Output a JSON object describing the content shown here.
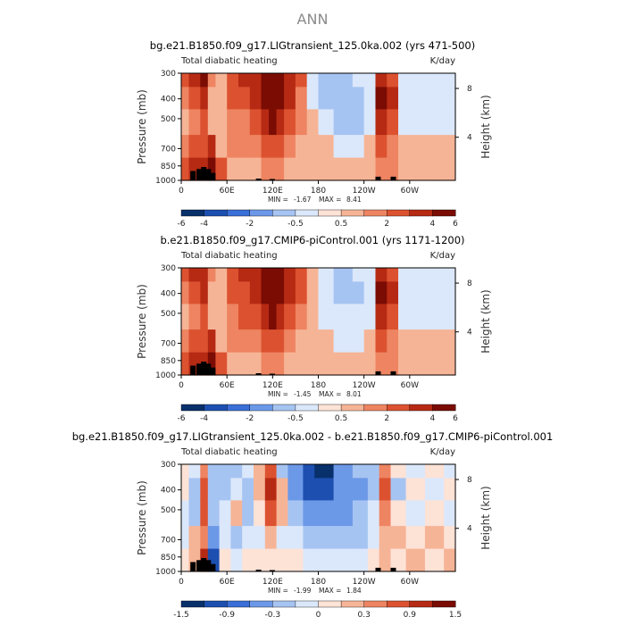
{
  "figure_title": "ANN",
  "colors": {
    "palette_12": [
      "#08306b",
      "#1c4fb0",
      "#3a6fd8",
      "#6c98e8",
      "#a6c4f2",
      "#dbe8fb",
      "#fde2d6",
      "#f6b496",
      "#ee8461",
      "#dc5230",
      "#b62a14",
      "#7a0c04"
    ],
    "terrain": "#000000"
  },
  "chart_data": [
    {
      "type": "heatmap",
      "title": "bg.e21.B1850.f09_g17.LIGtransient_125.0ka.002 (yrs 471-500)",
      "variable": "Total diabatic heating",
      "units": "K/day",
      "ylabel": "Pressure (mb)",
      "y2label": "Height (km)",
      "x_ticks": [
        "0",
        "60E",
        "120E",
        "180",
        "120W",
        "60W"
      ],
      "x_tick_values": [
        0,
        60,
        120,
        180,
        240,
        300
      ],
      "xlim": [
        0,
        360
      ],
      "y_ticks": [
        "300",
        "400",
        "500",
        "700",
        "850",
        "1000"
      ],
      "y_tick_values": [
        300,
        400,
        500,
        700,
        850,
        1000
      ],
      "ylim": [
        1000,
        300
      ],
      "y2_ticks": [
        "8",
        "4"
      ],
      "y2_tick_values": [
        8,
        4
      ],
      "min_label": "MIN =",
      "min_value": "-1.67",
      "max_label": "MAX =",
      "max_value": "8.41",
      "colorbar_levels": [
        -6,
        -4,
        -3,
        -2,
        -1,
        -0.5,
        0,
        0.5,
        1,
        2,
        3,
        4,
        6
      ],
      "colorbar_labels": [
        "-6",
        "-4",
        "-2",
        "-0.5",
        "0.5",
        "2",
        "4",
        "6"
      ],
      "field": [
        {
          "lon": 0,
          "values": [
            2,
            1,
            0.5,
            1,
            2
          ]
        },
        {
          "lon": 10,
          "values": [
            3,
            2,
            1,
            2,
            3
          ]
        },
        {
          "lon": 25,
          "values": [
            4,
            3,
            2,
            2,
            3
          ]
        },
        {
          "lon": 35,
          "values": [
            1,
            0.5,
            0.5,
            3,
            6
          ]
        },
        {
          "lon": 45,
          "values": [
            0.5,
            0.5,
            0.5,
            0.5,
            2
          ]
        },
        {
          "lon": 60,
          "values": [
            2,
            2,
            1,
            1,
            0.5
          ]
        },
        {
          "lon": 75,
          "values": [
            3,
            2,
            1,
            1,
            0.5
          ]
        },
        {
          "lon": 90,
          "values": [
            3,
            3,
            2,
            1,
            0.5
          ]
        },
        {
          "lon": 105,
          "values": [
            4,
            4,
            3,
            2,
            1
          ]
        },
        {
          "lon": 115,
          "values": [
            6,
            6,
            4,
            2,
            1
          ]
        },
        {
          "lon": 125,
          "values": [
            4,
            6,
            3,
            2,
            1
          ]
        },
        {
          "lon": 135,
          "values": [
            3,
            3,
            2,
            1,
            0.5
          ]
        },
        {
          "lon": 150,
          "values": [
            2,
            1,
            1,
            0.5,
            0.5
          ]
        },
        {
          "lon": 165,
          "values": [
            -0.5,
            -0.5,
            0.5,
            0.5,
            0.5
          ]
        },
        {
          "lon": 180,
          "values": [
            -1,
            -1,
            -0.5,
            0.5,
            0.5
          ]
        },
        {
          "lon": 200,
          "values": [
            -1,
            -1,
            -1,
            -0.5,
            0.5
          ]
        },
        {
          "lon": 225,
          "values": [
            -0.5,
            -1,
            -1,
            -0.5,
            0.5
          ]
        },
        {
          "lon": 240,
          "values": [
            -0.5,
            -0.5,
            -0.5,
            0.5,
            0.5
          ]
        },
        {
          "lon": 255,
          "values": [
            3,
            4,
            3,
            2,
            1
          ]
        },
        {
          "lon": 270,
          "values": [
            2,
            3,
            2,
            1,
            1
          ]
        },
        {
          "lon": 285,
          "values": [
            -0.5,
            -0.5,
            -0.5,
            0.5,
            0.5
          ]
        },
        {
          "lon": 300,
          "values": [
            -0.5,
            -0.5,
            -0.5,
            0.5,
            0.5
          ]
        },
        {
          "lon": 330,
          "values": [
            -0.5,
            -0.5,
            -0.5,
            0.5,
            0.5
          ]
        },
        {
          "lon": 360,
          "values": [
            0.5,
            0.5,
            0.5,
            1,
            2
          ]
        }
      ],
      "field_levels": [
        300,
        400,
        500,
        700,
        850
      ]
    },
    {
      "type": "heatmap",
      "title": "b.e21.B1850.f09_g17.CMIP6-piControl.001 (yrs 1171-1200)",
      "variable": "Total diabatic heating",
      "units": "K/day",
      "ylabel": "Pressure (mb)",
      "y2label": "Height (km)",
      "x_ticks": [
        "0",
        "60E",
        "120E",
        "180",
        "120W",
        "60W"
      ],
      "x_tick_values": [
        0,
        60,
        120,
        180,
        240,
        300
      ],
      "xlim": [
        0,
        360
      ],
      "y_ticks": [
        "300",
        "400",
        "500",
        "700",
        "850",
        "1000"
      ],
      "y_tick_values": [
        300,
        400,
        500,
        700,
        850,
        1000
      ],
      "ylim": [
        1000,
        300
      ],
      "y2_ticks": [
        "8",
        "4"
      ],
      "y2_tick_values": [
        8,
        4
      ],
      "min_label": "MIN =",
      "min_value": "-1.45",
      "max_label": "MAX =",
      "max_value": "8.01",
      "colorbar_levels": [
        -6,
        -4,
        -3,
        -2,
        -1,
        -0.5,
        0,
        0.5,
        1,
        2,
        3,
        4,
        6
      ],
      "colorbar_labels": [
        "-6",
        "-4",
        "-2",
        "-0.5",
        "0.5",
        "2",
        "4",
        "6"
      ],
      "field": [
        {
          "lon": 0,
          "values": [
            2,
            1,
            0.5,
            1,
            2
          ]
        },
        {
          "lon": 10,
          "values": [
            3,
            2,
            1,
            2,
            3
          ]
        },
        {
          "lon": 25,
          "values": [
            3,
            3,
            2,
            2,
            3
          ]
        },
        {
          "lon": 35,
          "values": [
            1,
            0.5,
            0.5,
            3,
            6
          ]
        },
        {
          "lon": 45,
          "values": [
            0.5,
            0.5,
            0.5,
            0.5,
            2
          ]
        },
        {
          "lon": 60,
          "values": [
            2,
            2,
            1,
            1,
            0.5
          ]
        },
        {
          "lon": 75,
          "values": [
            3,
            2,
            2,
            1,
            0.5
          ]
        },
        {
          "lon": 90,
          "values": [
            3,
            3,
            2,
            1,
            0.5
          ]
        },
        {
          "lon": 105,
          "values": [
            4,
            4,
            3,
            2,
            1
          ]
        },
        {
          "lon": 115,
          "values": [
            6,
            6,
            4,
            2,
            1
          ]
        },
        {
          "lon": 125,
          "values": [
            4,
            4,
            3,
            2,
            1
          ]
        },
        {
          "lon": 135,
          "values": [
            3,
            3,
            2,
            1,
            0.5
          ]
        },
        {
          "lon": 150,
          "values": [
            2,
            2,
            1,
            0.5,
            0.5
          ]
        },
        {
          "lon": 165,
          "values": [
            0.5,
            0.5,
            0.5,
            0.5,
            0.5
          ]
        },
        {
          "lon": 180,
          "values": [
            -0.5,
            -0.5,
            -0.5,
            0.5,
            0.5
          ]
        },
        {
          "lon": 200,
          "values": [
            -1,
            -1,
            -0.5,
            -0.5,
            0.5
          ]
        },
        {
          "lon": 225,
          "values": [
            -0.5,
            -1,
            -0.5,
            -0.5,
            0.5
          ]
        },
        {
          "lon": 240,
          "values": [
            -0.5,
            -0.5,
            -0.5,
            0.5,
            0.5
          ]
        },
        {
          "lon": 255,
          "values": [
            3,
            4,
            3,
            2,
            1
          ]
        },
        {
          "lon": 270,
          "values": [
            2,
            3,
            2,
            1,
            1
          ]
        },
        {
          "lon": 285,
          "values": [
            -0.5,
            -0.5,
            -0.5,
            0.5,
            0.5
          ]
        },
        {
          "lon": 300,
          "values": [
            -0.5,
            -0.5,
            -0.5,
            0.5,
            0.5
          ]
        },
        {
          "lon": 330,
          "values": [
            -0.5,
            -0.5,
            -0.5,
            0.5,
            0.5
          ]
        },
        {
          "lon": 360,
          "values": [
            0.5,
            0.5,
            0.5,
            1,
            2
          ]
        }
      ],
      "field_levels": [
        300,
        400,
        500,
        700,
        850
      ]
    },
    {
      "type": "heatmap",
      "title": "bg.e21.B1850.f09_g17.LIGtransient_125.0ka.002 - b.e21.B1850.f09_g17.CMIP6-piControl.001",
      "variable": "Total diabatic heating",
      "units": "K/day",
      "ylabel": "Pressure (mb)",
      "y2label": "Height (km)",
      "x_ticks": [
        "0",
        "60E",
        "120E",
        "180",
        "120W",
        "60W"
      ],
      "x_tick_values": [
        0,
        60,
        120,
        180,
        240,
        300
      ],
      "xlim": [
        0,
        360
      ],
      "y_ticks": [
        "300",
        "400",
        "500",
        "700",
        "850",
        "1000"
      ],
      "y_tick_values": [
        300,
        400,
        500,
        700,
        850,
        1000
      ],
      "ylim": [
        1000,
        300
      ],
      "y2_ticks": [
        "8",
        "4"
      ],
      "y2_tick_values": [
        8,
        4
      ],
      "min_label": "MIN =",
      "min_value": "-1.99",
      "max_label": "MAX =",
      "max_value": "1.84",
      "colorbar_levels": [
        -1.5,
        -1.2,
        -0.9,
        -0.6,
        -0.3,
        -0.1,
        0,
        0.1,
        0.3,
        0.6,
        0.9,
        1.2,
        1.5
      ],
      "colorbar_labels": [
        "-1.5",
        "-0.9",
        "-0.3",
        "0",
        "0.3",
        "0.9",
        "1.5"
      ],
      "colorbar_label_values": [
        -1.5,
        -0.9,
        -0.3,
        0,
        0.3,
        0.9,
        1.5
      ],
      "field": [
        {
          "lon": 0,
          "values": [
            0.05,
            0.05,
            -0.05,
            -0.05,
            0.05
          ]
        },
        {
          "lon": 10,
          "values": [
            -0.05,
            -0.2,
            -0.2,
            0.2,
            0.2
          ]
        },
        {
          "lon": 25,
          "values": [
            0.3,
            0.6,
            0.6,
            0.3,
            0.9
          ]
        },
        {
          "lon": 35,
          "values": [
            -0.2,
            -0.2,
            -0.2,
            -0.6,
            -1.2
          ]
        },
        {
          "lon": 50,
          "values": [
            -0.2,
            -0.2,
            -0.05,
            -0.05,
            0.05
          ]
        },
        {
          "lon": 65,
          "values": [
            -0.2,
            -0.05,
            0.2,
            -0.2,
            -0.05
          ]
        },
        {
          "lon": 80,
          "values": [
            -0.05,
            -0.2,
            -0.2,
            -0.05,
            0.05
          ]
        },
        {
          "lon": 95,
          "values": [
            0.2,
            0.2,
            0.05,
            -0.05,
            0.05
          ]
        },
        {
          "lon": 110,
          "values": [
            0.6,
            0.9,
            0.6,
            0.2,
            0.05
          ]
        },
        {
          "lon": 125,
          "values": [
            -0.2,
            0.2,
            0.2,
            -0.05,
            0.05
          ]
        },
        {
          "lon": 140,
          "values": [
            -0.6,
            -0.6,
            -0.2,
            -0.05,
            0.05
          ]
        },
        {
          "lon": 160,
          "values": [
            -1.2,
            -1.2,
            -0.6,
            -0.2,
            -0.05
          ]
        },
        {
          "lon": 175,
          "values": [
            -1.5,
            -1.2,
            -0.6,
            -0.2,
            -0.05
          ]
        },
        {
          "lon": 200,
          "values": [
            -0.6,
            -0.6,
            -0.6,
            -0.2,
            -0.05
          ]
        },
        {
          "lon": 225,
          "values": [
            -0.2,
            -0.6,
            -0.2,
            -0.2,
            -0.05
          ]
        },
        {
          "lon": 245,
          "values": [
            -0.2,
            -0.2,
            -0.05,
            -0.05,
            0.05
          ]
        },
        {
          "lon": 260,
          "values": [
            0.3,
            0.6,
            0.3,
            0.2,
            0.2
          ]
        },
        {
          "lon": 275,
          "values": [
            0.05,
            -0.2,
            0.05,
            0.2,
            0.05
          ]
        },
        {
          "lon": 295,
          "values": [
            -0.05,
            0.05,
            -0.05,
            0.05,
            0.2
          ]
        },
        {
          "lon": 320,
          "values": [
            0.05,
            -0.05,
            0.05,
            0.2,
            0.05
          ]
        },
        {
          "lon": 345,
          "values": [
            -0.05,
            0.05,
            -0.05,
            0.05,
            0.2
          ]
        },
        {
          "lon": 360,
          "values": [
            0.05,
            0.05,
            -0.05,
            -0.05,
            0.05
          ]
        }
      ],
      "field_levels": [
        300,
        400,
        500,
        700,
        850
      ]
    }
  ]
}
